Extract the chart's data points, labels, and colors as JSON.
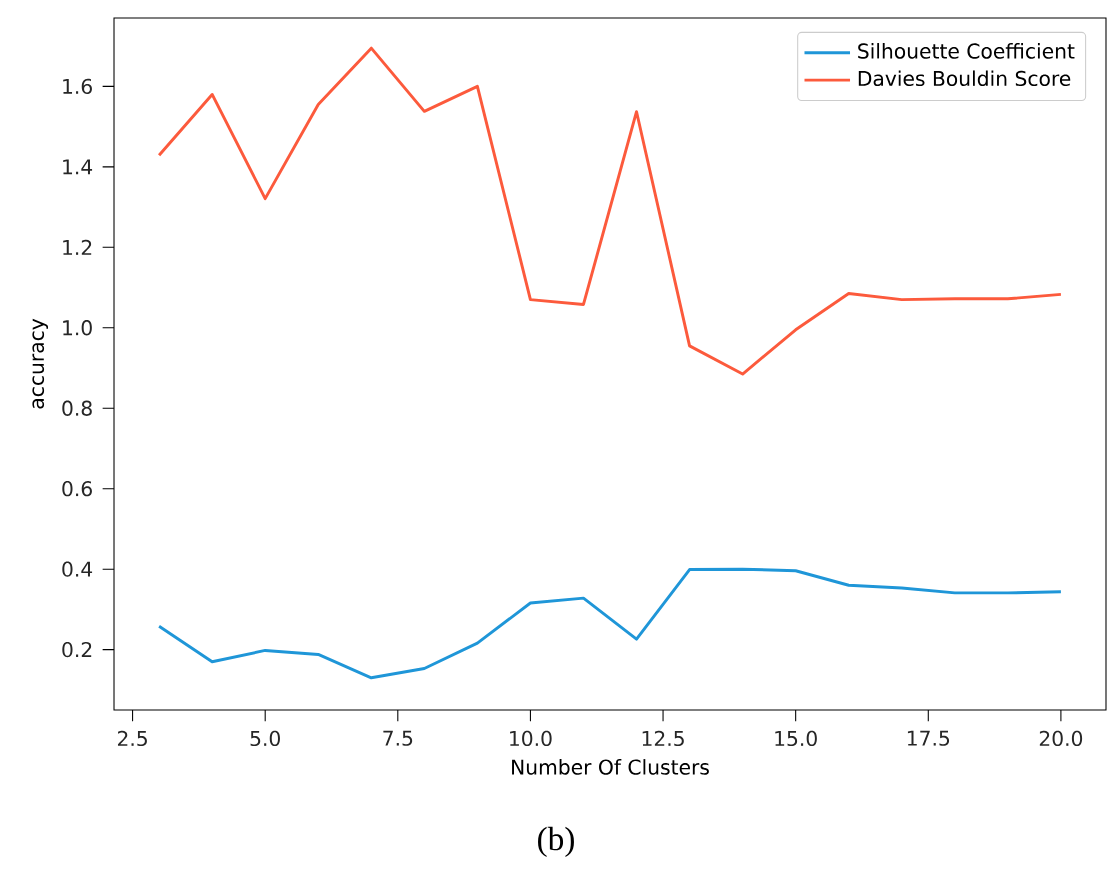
{
  "chart_data": {
    "type": "line",
    "xlabel": "Number Of Clusters",
    "ylabel": "accuracy",
    "x": [
      3,
      4,
      5,
      6,
      7,
      8,
      9,
      10,
      11,
      12,
      13,
      14,
      15,
      16,
      17,
      18,
      19,
      20
    ],
    "series": [
      {
        "name": "Silhouette Coefficient",
        "color": "#1f96d8",
        "values": [
          0.258,
          0.17,
          0.198,
          0.188,
          0.13,
          0.153,
          0.216,
          0.316,
          0.328,
          0.226,
          0.399,
          0.4,
          0.396,
          0.36,
          0.353,
          0.341,
          0.341,
          0.344
        ]
      },
      {
        "name": "Davies Bouldin Score",
        "color": "#fc5a3c",
        "values": [
          1.429,
          1.58,
          1.321,
          1.555,
          1.695,
          1.538,
          1.6,
          1.07,
          1.058,
          1.537,
          0.955,
          0.885,
          0.995,
          1.085,
          1.07,
          1.072,
          1.072,
          1.083
        ]
      }
    ],
    "xlim": [
      2.15,
      20.85
    ],
    "ylim": [
      0.05,
      1.77
    ],
    "xticks": [
      {
        "value": 2.5,
        "label": "2.5"
      },
      {
        "value": 5,
        "label": "5.0"
      },
      {
        "value": 7.5,
        "label": "7.5"
      },
      {
        "value": 10,
        "label": "10.0"
      },
      {
        "value": 12.5,
        "label": "12.5"
      },
      {
        "value": 15,
        "label": "15.0"
      },
      {
        "value": 17.5,
        "label": "17.5"
      },
      {
        "value": 20,
        "label": "20.0"
      }
    ],
    "yticks": [
      {
        "value": 0.2,
        "label": "0.2"
      },
      {
        "value": 0.4,
        "label": "0.4"
      },
      {
        "value": 0.6,
        "label": "0.6"
      },
      {
        "value": 0.8,
        "label": "0.8"
      },
      {
        "value": 1.0,
        "label": "1.0"
      },
      {
        "value": 1.2,
        "label": "1.2"
      },
      {
        "value": 1.4,
        "label": "1.4"
      },
      {
        "value": 1.6,
        "label": "1.6"
      }
    ],
    "legend": "top right",
    "grid": false,
    "marker": "none",
    "line_style": "solid",
    "annotations": [
      "(b)"
    ]
  }
}
